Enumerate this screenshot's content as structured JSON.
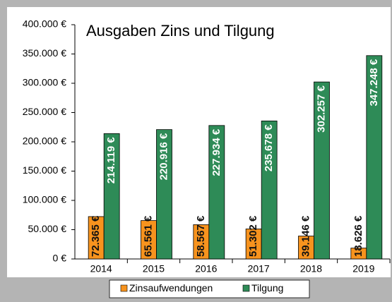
{
  "chart_data": {
    "type": "bar",
    "title": "Ausgaben Zins und Tilgung",
    "categories": [
      "2014",
      "2015",
      "2016",
      "2017",
      "2018",
      "2019"
    ],
    "series": [
      {
        "name": "Zinsaufwendungen",
        "color": "#f7931e",
        "values": [
          72365,
          65561,
          58567,
          51302,
          39146,
          18626
        ],
        "value_labels": [
          "72.365 €",
          "65.561 €",
          "58.567 €",
          "51.302 €",
          "39.146 €",
          "18.626 €"
        ]
      },
      {
        "name": "Tilgung",
        "color": "#2e8b57",
        "values": [
          214119,
          220916,
          227934,
          235678,
          302257,
          347248
        ],
        "value_labels": [
          "214.119 €",
          "220.916 €",
          "227.934 €",
          "235.678 €",
          "302.257 €",
          "347.248 €"
        ]
      }
    ],
    "ylim": [
      0,
      400000
    ],
    "yticks": [
      {
        "value": 0,
        "label": "0 €"
      },
      {
        "value": 50000,
        "label": "50.000 €"
      },
      {
        "value": 100000,
        "label": "100.000 €"
      },
      {
        "value": 150000,
        "label": "150.000 €"
      },
      {
        "value": 200000,
        "label": "200.000 €"
      },
      {
        "value": 250000,
        "label": "250.000 €"
      },
      {
        "value": 300000,
        "label": "300.000 €"
      },
      {
        "value": 350000,
        "label": "350.000 €"
      },
      {
        "value": 400000,
        "label": "400.000 €"
      }
    ],
    "legend": "bottom"
  }
}
